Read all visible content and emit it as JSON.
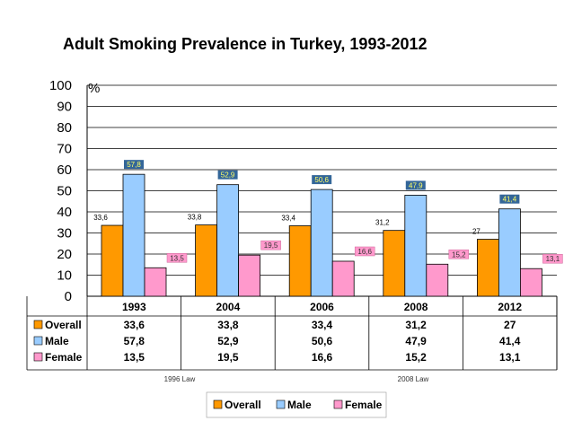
{
  "chart_data": {
    "type": "bar",
    "title": "Adult Smoking Prevalence in Turkey, 1993-2012",
    "unit_label": "%",
    "categories": [
      "1993",
      "2004",
      "2006",
      "2008",
      "2012"
    ],
    "ylim": [
      0,
      100
    ],
    "yticks": [
      0,
      10,
      20,
      30,
      40,
      50,
      60,
      70,
      80,
      90,
      100
    ],
    "grid": true,
    "series": [
      {
        "name": "Overall",
        "color": "#FF9900",
        "values": [
          33.6,
          33.8,
          33.4,
          31.2,
          27
        ],
        "labels": [
          "33,6",
          "33,8",
          "33,4",
          "31,2",
          "27"
        ]
      },
      {
        "name": "Male",
        "color": "#99CCFF",
        "values": [
          57.8,
          52.9,
          50.6,
          47.9,
          41.4
        ],
        "labels": [
          "57,8",
          "52,9",
          "50,6",
          "47,9",
          "41,4"
        ],
        "label_bg": "#336699",
        "label_color": "#FFFF66"
      },
      {
        "name": "Female",
        "color": "#FF99CC",
        "values": [
          13.5,
          19.5,
          16.6,
          15.2,
          13.1
        ],
        "labels": [
          "13,5",
          "19,5",
          "16,6",
          "15,2",
          "13,1"
        ],
        "label_bg": "#FF99CC",
        "label_color": "#333333"
      }
    ],
    "table": {
      "rows": [
        {
          "name": "Overall",
          "cells": [
            "33,6",
            "33,8",
            "33,4",
            "31,2",
            "27"
          ]
        },
        {
          "name": "Male",
          "cells": [
            "57,8",
            "52,9",
            "50,6",
            "47,9",
            "41,4"
          ]
        },
        {
          "name": "Female",
          "cells": [
            "13,5",
            "19,5",
            "16,6",
            "15,2",
            "13,1"
          ]
        }
      ]
    },
    "annotations": [
      "1996 Law",
      "2008 Law"
    ],
    "legend_position": "bottom"
  }
}
